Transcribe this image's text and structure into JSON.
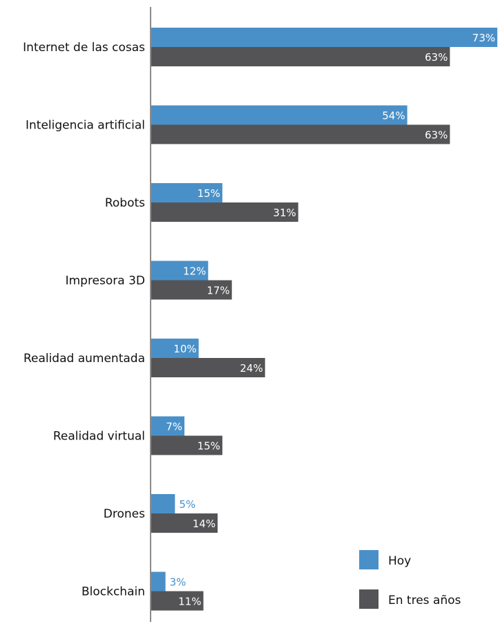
{
  "chart_data": {
    "type": "bar",
    "orientation": "horizontal",
    "categories": [
      "Internet de las cosas",
      "Inteligencia artificial",
      "Robots",
      "Impresora 3D",
      "Realidad aumentada",
      "Realidad virtual",
      "Drones",
      "Blockchain"
    ],
    "series": [
      {
        "name": "Hoy",
        "color": "#4a90c8",
        "values": [
          73,
          54,
          15,
          12,
          10,
          7,
          5,
          3
        ],
        "labels": [
          "73%",
          "54%",
          "15%",
          "12%",
          "10%",
          "7%",
          "5%",
          "3%"
        ]
      },
      {
        "name": "En tres años",
        "color": "#545456",
        "values": [
          63,
          63,
          31,
          17,
          24,
          15,
          14,
          11
        ],
        "labels": [
          "63%",
          "63%",
          "31%",
          "17%",
          "24%",
          "15%",
          "14%",
          "11%"
        ]
      }
    ],
    "xlim": [
      0,
      73
    ],
    "grid": false,
    "legend_position": "bottom-right"
  }
}
